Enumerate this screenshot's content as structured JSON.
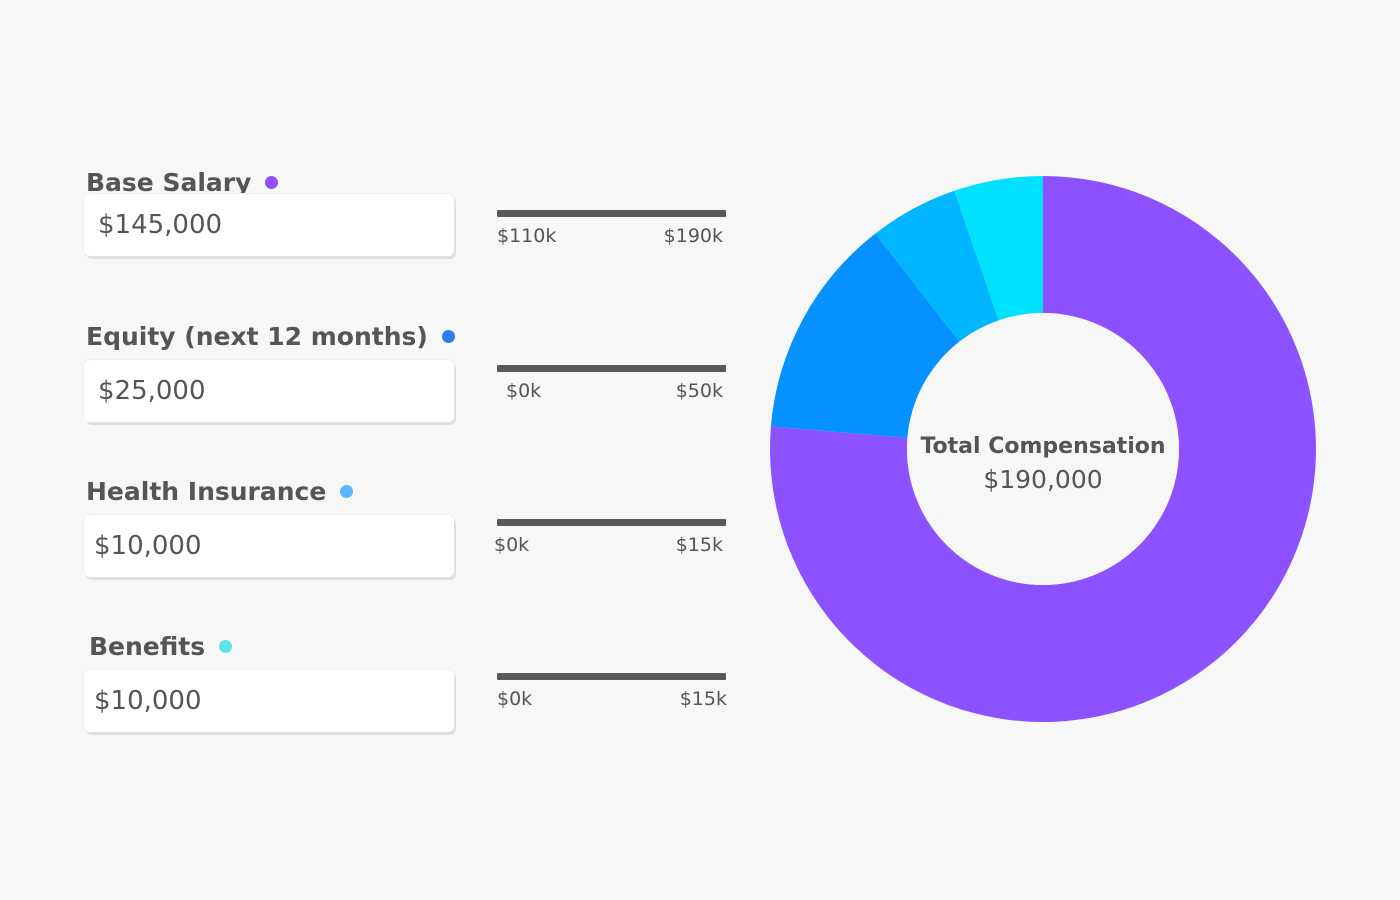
{
  "fields": [
    {
      "label": "Base Salary",
      "value": "$145,000",
      "dot_color": "#8c52ff",
      "range_min": "$110k",
      "range_max": "$190k"
    },
    {
      "label": "Equity (next 12 months)",
      "value": "$25,000",
      "dot_color": "#2b7ff0",
      "range_min": "$0k",
      "range_max": "$50k"
    },
    {
      "label": "Health Insurance",
      "value": "$10,000",
      "dot_color": "#5ab8ff",
      "range_min": "$0k",
      "range_max": "$15k"
    },
    {
      "label": "Benefits",
      "value": "$10,000",
      "dot_color": "#5ee3e6",
      "range_min": "$0k",
      "range_max": "$15k"
    }
  ],
  "total": {
    "title": "Total Compensation",
    "value": "$190,000"
  },
  "chart_data": {
    "type": "pie",
    "categories": [
      "Base Salary",
      "Equity (next 12 months)",
      "Health Insurance",
      "Benefits"
    ],
    "values": [
      145000,
      25000,
      10000,
      10000
    ],
    "colors": [
      "#8c52ff",
      "#0591ff",
      "#00b7ff",
      "#00e0ff"
    ],
    "donut": true
  }
}
